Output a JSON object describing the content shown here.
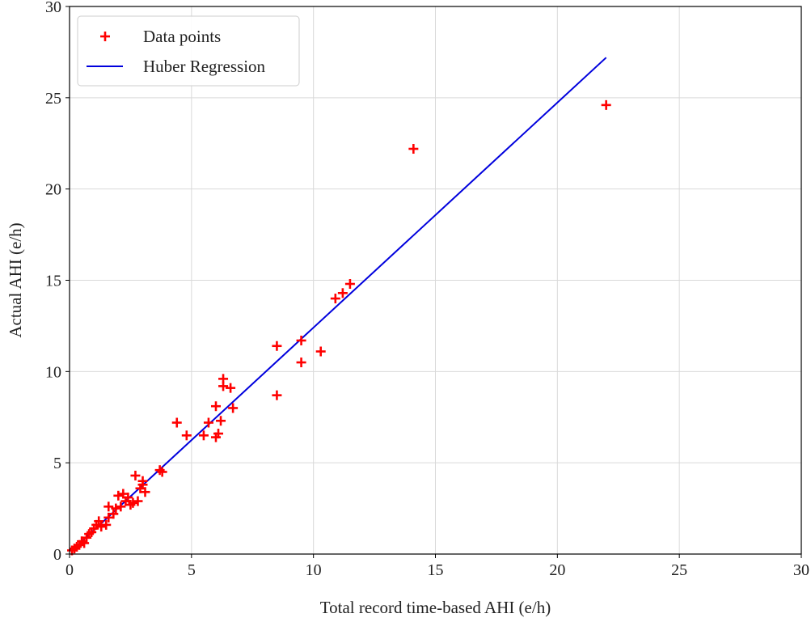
{
  "chart_data": {
    "type": "scatter",
    "title": "",
    "xlabel": "Total record time-based AHI (e/h)",
    "ylabel": "Actual AHI (e/h)",
    "xlim": [
      0,
      30
    ],
    "ylim": [
      0,
      30
    ],
    "xticks": [
      "0",
      "5",
      "10",
      "15",
      "20",
      "25",
      "30"
    ],
    "yticks": [
      "0",
      "5",
      "10",
      "15",
      "20",
      "25",
      "30"
    ],
    "grid": true,
    "legend_position": "top-left",
    "series": [
      {
        "name": "Data points",
        "kind": "scatter",
        "marker": "plus",
        "color": "#ff0000",
        "points": [
          [
            0.1,
            0.2
          ],
          [
            0.2,
            0.3
          ],
          [
            0.3,
            0.4
          ],
          [
            0.4,
            0.5
          ],
          [
            0.5,
            0.7
          ],
          [
            0.6,
            0.6
          ],
          [
            0.7,
            0.9
          ],
          [
            0.8,
            1.1
          ],
          [
            0.9,
            1.2
          ],
          [
            1.0,
            1.4
          ],
          [
            1.1,
            1.6
          ],
          [
            1.2,
            1.8
          ],
          [
            1.3,
            1.5
          ],
          [
            1.5,
            1.6
          ],
          [
            1.6,
            2.0
          ],
          [
            1.6,
            2.6
          ],
          [
            1.8,
            2.2
          ],
          [
            1.9,
            2.5
          ],
          [
            2.0,
            3.2
          ],
          [
            2.1,
            2.6
          ],
          [
            2.2,
            3.3
          ],
          [
            2.3,
            2.9
          ],
          [
            2.4,
            3.1
          ],
          [
            2.5,
            2.7
          ],
          [
            2.6,
            2.8
          ],
          [
            2.7,
            4.3
          ],
          [
            2.8,
            2.9
          ],
          [
            2.9,
            3.6
          ],
          [
            3.0,
            4.0
          ],
          [
            3.1,
            3.4
          ],
          [
            3.0,
            3.8
          ],
          [
            3.7,
            4.6
          ],
          [
            3.8,
            4.5
          ],
          [
            4.4,
            7.2
          ],
          [
            4.8,
            6.5
          ],
          [
            5.5,
            6.5
          ],
          [
            5.7,
            7.2
          ],
          [
            6.0,
            6.4
          ],
          [
            6.0,
            8.1
          ],
          [
            6.1,
            6.6
          ],
          [
            6.2,
            7.3
          ],
          [
            6.3,
            9.6
          ],
          [
            6.3,
            9.2
          ],
          [
            6.6,
            9.1
          ],
          [
            6.7,
            8.0
          ],
          [
            8.5,
            11.4
          ],
          [
            8.5,
            8.7
          ],
          [
            9.5,
            11.7
          ],
          [
            9.5,
            10.5
          ],
          [
            10.3,
            11.1
          ],
          [
            10.9,
            14.0
          ],
          [
            11.2,
            14.3
          ],
          [
            11.5,
            14.8
          ],
          [
            14.1,
            22.2
          ],
          [
            22.0,
            24.6
          ]
        ]
      },
      {
        "name": "Huber Regression",
        "kind": "line",
        "color": "#0000dd",
        "x": [
          0.1,
          22.0
        ],
        "y": [
          0.2,
          27.2
        ]
      }
    ]
  }
}
